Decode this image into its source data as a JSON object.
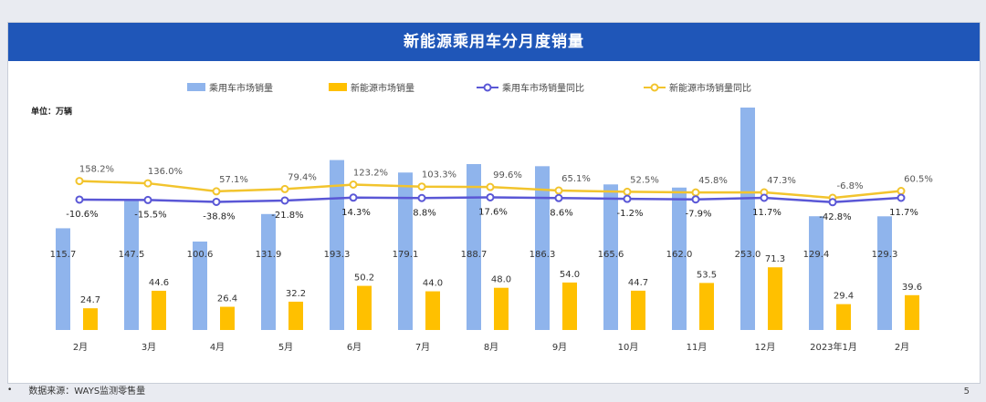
{
  "chart_data": {
    "type": "bar+line",
    "title": "新能源乘用车分月度销量",
    "unit_label": "单位：万辆",
    "categories": [
      "2月",
      "3月",
      "4月",
      "5月",
      "6月",
      "7月",
      "8月",
      "9月",
      "10月",
      "11月",
      "12月",
      "2023年1月",
      "2月"
    ],
    "series": [
      {
        "name": "乘用车市场销量",
        "kind": "bar",
        "color": "#8fb4ec",
        "values": [
          115.7,
          147.5,
          100.6,
          131.9,
          193.3,
          179.1,
          188.7,
          186.3,
          165.6,
          162.0,
          253.0,
          129.4,
          129.3
        ],
        "labels": [
          "115.7",
          "147.5",
          "100.6",
          "131.9",
          "193.3",
          "179.1",
          "188.7",
          "186.3",
          "165.6",
          "162.0",
          "253.0",
          "129.4",
          "129.3"
        ]
      },
      {
        "name": "新能源市场销量",
        "kind": "bar",
        "color": "#ffc000",
        "values": [
          24.7,
          44.6,
          26.4,
          32.2,
          50.2,
          44.0,
          48.0,
          54.0,
          44.7,
          53.5,
          71.3,
          29.4,
          39.6
        ],
        "labels": [
          "24.7",
          "44.6",
          "26.4",
          "32.2",
          "50.2",
          "44.0",
          "48.0",
          "54.0",
          "44.7",
          "53.5",
          "71.3",
          "29.4",
          "39.6"
        ]
      },
      {
        "name": "乘用车市场销量同比",
        "kind": "line",
        "color": "#5a57d6",
        "values": [
          -10.6,
          -15.5,
          -38.8,
          -21.8,
          14.3,
          8.8,
          17.6,
          8.6,
          -1.2,
          -7.9,
          11.7,
          -42.8,
          11.7
        ],
        "labels": [
          "-10.6%",
          "-15.5%",
          "-38.8%",
          "-21.8%",
          "14.3%",
          "8.8%",
          "17.6%",
          "8.6%",
          "-1.2%",
          "-7.9%",
          "11.7%",
          "-42.8%",
          "11.7%"
        ]
      },
      {
        "name": "新能源市场销量同比",
        "kind": "line",
        "color": "#f2c42d",
        "values": [
          158.2,
          136.0,
          57.1,
          79.4,
          123.2,
          103.3,
          99.6,
          65.1,
          52.5,
          45.8,
          47.3,
          -6.8,
          60.5
        ],
        "labels": [
          "158.2%",
          "136.0%",
          "57.1%",
          "79.4%",
          "123.2%",
          "103.3%",
          "99.6%",
          "65.1%",
          "52.5%",
          "45.8%",
          "47.3%",
          "-6.8%",
          "60.5%"
        ]
      }
    ],
    "ylim_sales": [
      0,
      253
    ],
    "grid": false,
    "legend_position": "top"
  },
  "footer": {
    "bullet": "•",
    "source": "数据来源：WAYS监测零售量",
    "page": "5"
  }
}
